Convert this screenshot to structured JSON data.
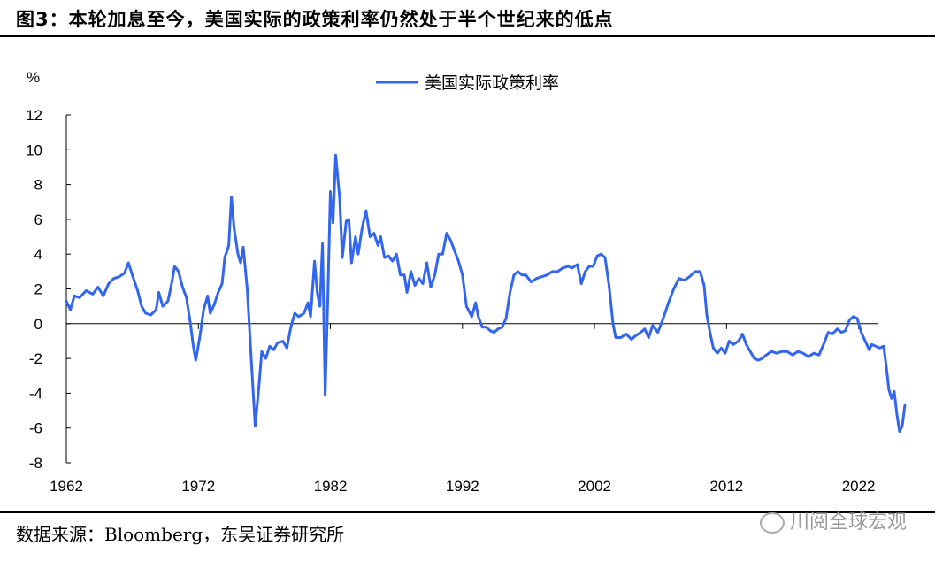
{
  "header": {
    "title": "图3：本轮加息至今，美国实际的政策利率仍然处于半个世纪来的低点"
  },
  "footer": {
    "source": "数据来源：Bloomberg，东吴证券研究所",
    "watermark": "川阅全球宏观"
  },
  "colors": {
    "line": "#3366ee",
    "axis": "#000000"
  },
  "chart_data": {
    "type": "line",
    "title": "",
    "ylabel": "%",
    "xlabel": "",
    "ylim": [
      -8,
      12
    ],
    "yticks": [
      -8,
      -6,
      -4,
      -2,
      0,
      2,
      4,
      6,
      8,
      10,
      12
    ],
    "xlim": [
      1962,
      2023.5
    ],
    "xticks": [
      1962,
      1972,
      1982,
      1992,
      2002,
      2012,
      2022
    ],
    "grid": false,
    "legend": "top-center",
    "series": [
      {
        "name": "美国实际政策利率",
        "points": [
          [
            1962.0,
            1.3
          ],
          [
            1962.3,
            0.8
          ],
          [
            1962.6,
            1.6
          ],
          [
            1963.0,
            1.5
          ],
          [
            1963.5,
            1.9
          ],
          [
            1964.0,
            1.7
          ],
          [
            1964.4,
            2.1
          ],
          [
            1964.8,
            1.6
          ],
          [
            1965.2,
            2.3
          ],
          [
            1965.6,
            2.6
          ],
          [
            1966.0,
            2.7
          ],
          [
            1966.4,
            2.9
          ],
          [
            1966.7,
            3.5
          ],
          [
            1967.0,
            2.8
          ],
          [
            1967.4,
            1.9
          ],
          [
            1967.7,
            1.0
          ],
          [
            1968.0,
            0.6
          ],
          [
            1968.4,
            0.5
          ],
          [
            1968.8,
            0.8
          ],
          [
            1969.0,
            1.8
          ],
          [
            1969.3,
            1.0
          ],
          [
            1969.7,
            1.3
          ],
          [
            1970.0,
            2.4
          ],
          [
            1970.2,
            3.3
          ],
          [
            1970.5,
            3.0
          ],
          [
            1970.8,
            2.1
          ],
          [
            1971.1,
            1.5
          ],
          [
            1971.4,
            0.0
          ],
          [
            1971.6,
            -1.2
          ],
          [
            1971.8,
            -2.1
          ],
          [
            1972.1,
            -0.8
          ],
          [
            1972.4,
            0.8
          ],
          [
            1972.7,
            1.6
          ],
          [
            1972.9,
            0.6
          ],
          [
            1973.2,
            1.1
          ],
          [
            1973.5,
            1.8
          ],
          [
            1973.8,
            2.3
          ],
          [
            1974.0,
            3.8
          ],
          [
            1974.3,
            4.5
          ],
          [
            1974.5,
            7.3
          ],
          [
            1974.7,
            5.5
          ],
          [
            1975.0,
            4.0
          ],
          [
            1975.2,
            3.5
          ],
          [
            1975.4,
            4.4
          ],
          [
            1975.7,
            2.0
          ],
          [
            1976.0,
            -2.0
          ],
          [
            1976.3,
            -5.9
          ],
          [
            1976.6,
            -3.5
          ],
          [
            1976.8,
            -1.6
          ],
          [
            1977.1,
            -2.0
          ],
          [
            1977.4,
            -1.3
          ],
          [
            1977.7,
            -1.5
          ],
          [
            1978.0,
            -1.1
          ],
          [
            1978.4,
            -1.0
          ],
          [
            1978.7,
            -1.4
          ],
          [
            1979.0,
            -0.2
          ],
          [
            1979.3,
            0.6
          ],
          [
            1979.6,
            0.4
          ],
          [
            1980.0,
            0.6
          ],
          [
            1980.3,
            1.2
          ],
          [
            1980.5,
            0.4
          ],
          [
            1980.8,
            3.6
          ],
          [
            1981.0,
            1.8
          ],
          [
            1981.2,
            1.0
          ],
          [
            1981.4,
            4.6
          ],
          [
            1981.6,
            -4.1
          ],
          [
            1981.8,
            1.5
          ],
          [
            1982.0,
            7.6
          ],
          [
            1982.2,
            5.8
          ],
          [
            1982.4,
            9.7
          ],
          [
            1982.7,
            7.2
          ],
          [
            1982.9,
            3.8
          ],
          [
            1983.2,
            5.9
          ],
          [
            1983.4,
            6.0
          ],
          [
            1983.6,
            3.5
          ],
          [
            1983.9,
            5.0
          ],
          [
            1984.1,
            4.0
          ],
          [
            1984.4,
            5.5
          ],
          [
            1984.7,
            6.5
          ],
          [
            1985.0,
            5.0
          ],
          [
            1985.3,
            5.2
          ],
          [
            1985.6,
            4.5
          ],
          [
            1985.8,
            5.0
          ],
          [
            1986.1,
            3.8
          ],
          [
            1986.4,
            3.9
          ],
          [
            1986.7,
            3.6
          ],
          [
            1987.0,
            4.0
          ],
          [
            1987.3,
            2.8
          ],
          [
            1987.6,
            2.8
          ],
          [
            1987.8,
            1.8
          ],
          [
            1988.1,
            3.0
          ],
          [
            1988.4,
            2.2
          ],
          [
            1988.7,
            2.6
          ],
          [
            1989.0,
            2.3
          ],
          [
            1989.3,
            3.5
          ],
          [
            1989.6,
            2.1
          ],
          [
            1989.9,
            2.8
          ],
          [
            1990.2,
            4.0
          ],
          [
            1990.5,
            4.0
          ],
          [
            1990.8,
            5.2
          ],
          [
            1991.1,
            4.8
          ],
          [
            1991.4,
            4.2
          ],
          [
            1991.7,
            3.6
          ],
          [
            1992.0,
            2.8
          ],
          [
            1992.3,
            1.0
          ],
          [
            1992.7,
            0.4
          ],
          [
            1993.0,
            1.2
          ],
          [
            1993.2,
            0.4
          ],
          [
            1993.5,
            -0.2
          ],
          [
            1993.8,
            -0.2
          ],
          [
            1994.1,
            -0.4
          ],
          [
            1994.4,
            -0.5
          ],
          [
            1994.7,
            -0.3
          ],
          [
            1995.0,
            -0.2
          ],
          [
            1995.3,
            0.3
          ],
          [
            1995.6,
            1.8
          ],
          [
            1995.9,
            2.8
          ],
          [
            1996.2,
            3.0
          ],
          [
            1996.5,
            2.8
          ],
          [
            1996.8,
            2.8
          ],
          [
            1997.2,
            2.4
          ],
          [
            1997.6,
            2.6
          ],
          [
            1998.0,
            2.7
          ],
          [
            1998.4,
            2.8
          ],
          [
            1998.8,
            3.0
          ],
          [
            1999.2,
            3.0
          ],
          [
            1999.6,
            3.2
          ],
          [
            2000.0,
            3.3
          ],
          [
            2000.3,
            3.2
          ],
          [
            2000.7,
            3.4
          ],
          [
            2001.0,
            2.3
          ],
          [
            2001.3,
            3.0
          ],
          [
            2001.6,
            3.3
          ],
          [
            2001.9,
            3.3
          ],
          [
            2002.2,
            3.9
          ],
          [
            2002.5,
            4.0
          ],
          [
            2002.8,
            3.8
          ],
          [
            2003.1,
            2.2
          ],
          [
            2003.4,
            0.0
          ],
          [
            2003.6,
            -0.8
          ],
          [
            2004.0,
            -0.8
          ],
          [
            2004.4,
            -0.6
          ],
          [
            2004.8,
            -0.9
          ],
          [
            2005.1,
            -0.7
          ],
          [
            2005.5,
            -0.5
          ],
          [
            2005.8,
            -0.3
          ],
          [
            2006.1,
            -0.8
          ],
          [
            2006.4,
            -0.1
          ],
          [
            2006.8,
            -0.5
          ],
          [
            2007.2,
            0.3
          ],
          [
            2007.6,
            1.2
          ],
          [
            2008.0,
            2.0
          ],
          [
            2008.4,
            2.6
          ],
          [
            2008.8,
            2.5
          ],
          [
            2009.2,
            2.7
          ],
          [
            2009.6,
            3.0
          ],
          [
            2010.0,
            3.0
          ],
          [
            2010.3,
            2.2
          ],
          [
            2010.5,
            0.5
          ],
          [
            2010.8,
            -0.7
          ],
          [
            2011.0,
            -1.4
          ],
          [
            2011.3,
            -1.7
          ],
          [
            2011.6,
            -1.4
          ],
          [
            2011.9,
            -1.7
          ],
          [
            2012.2,
            -1.0
          ],
          [
            2012.5,
            -1.2
          ],
          [
            2012.9,
            -1.0
          ],
          [
            2013.2,
            -0.6
          ],
          [
            2013.5,
            -1.2
          ],
          [
            2013.8,
            -1.6
          ],
          [
            2014.1,
            -2.0
          ],
          [
            2014.4,
            -2.1
          ],
          [
            2014.7,
            -2.0
          ],
          [
            2015.0,
            -1.8
          ],
          [
            2015.4,
            -1.6
          ],
          [
            2015.8,
            -1.7
          ],
          [
            2016.2,
            -1.6
          ],
          [
            2016.6,
            -1.6
          ],
          [
            2017.0,
            -1.8
          ],
          [
            2017.4,
            -1.6
          ],
          [
            2017.8,
            -1.7
          ],
          [
            2018.2,
            -1.9
          ],
          [
            2018.6,
            -1.7
          ],
          [
            2019.0,
            -1.8
          ],
          [
            2019.4,
            -1.1
          ],
          [
            2019.7,
            -0.5
          ],
          [
            2020.0,
            -0.6
          ],
          [
            2020.4,
            -0.3
          ],
          [
            2020.7,
            -0.5
          ],
          [
            2021.0,
            -0.4
          ],
          [
            2021.3,
            0.2
          ],
          [
            2021.6,
            0.4
          ],
          [
            2021.9,
            0.3
          ],
          [
            2022.2,
            -0.5
          ],
          [
            2022.5,
            -1.0
          ],
          [
            2022.8,
            -1.5
          ],
          [
            2023.0,
            -1.2
          ],
          [
            2023.3,
            -1.3
          ],
          [
            2023.6,
            -1.4
          ],
          [
            2023.9,
            -1.3
          ],
          [
            2024.1,
            -2.5
          ],
          [
            2024.3,
            -3.8
          ],
          [
            2024.5,
            -4.3
          ],
          [
            2024.7,
            -3.9
          ],
          [
            2024.9,
            -5.2
          ],
          [
            2025.1,
            -6.2
          ],
          [
            2025.3,
            -5.9
          ],
          [
            2025.5,
            -4.7
          ]
        ]
      }
    ]
  }
}
